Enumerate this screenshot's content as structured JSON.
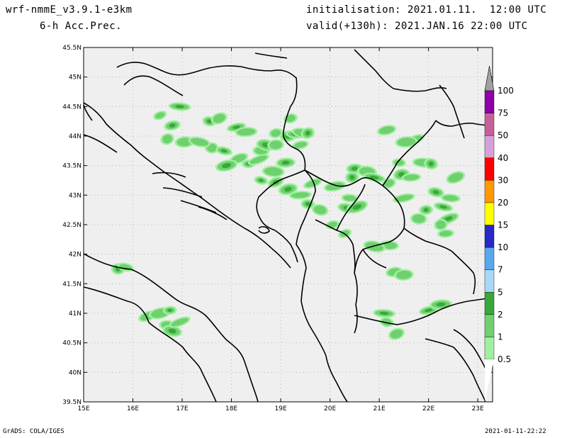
{
  "header": {
    "model": "wrf-nmmE_v3.9.1-e3km",
    "field": "6-h Acc.Prec.",
    "init": "initialisation: 2021.01.11.  12:00 UTC",
    "valid": "valid(+130h): 2021.JAN.16 22:00 UTC"
  },
  "footer": {
    "credit": "GrADS: COLA/IGES",
    "timestamp": "2021-01-11-22:22"
  },
  "map": {
    "lon_range": [
      15,
      23.3
    ],
    "lat_range": [
      39.5,
      45.5
    ],
    "background": "#efefef",
    "lon_ticks": [
      "15E",
      "16E",
      "17E",
      "18E",
      "19E",
      "20E",
      "21E",
      "22E",
      "23E"
    ],
    "lat_ticks": [
      "39.5N",
      "40N",
      "40.5N",
      "41N",
      "41.5N",
      "42N",
      "42.5N",
      "43N",
      "43.5N",
      "44N",
      "44.5N",
      "45N",
      "45.5N"
    ]
  },
  "legend": {
    "levels": [
      "0.5",
      "1",
      "2",
      "5",
      "7",
      "10",
      "15",
      "20",
      "30",
      "40",
      "50",
      "75",
      "100"
    ],
    "colors": [
      "#a0f0a0",
      "#70d070",
      "#38a838",
      "#a8d8f8",
      "#58a8f0",
      "#2828c8",
      "#ffff00",
      "#ff9800",
      "#ff0000",
      "#d8a0d8",
      "#c86098",
      "#9000a8",
      "#a0a0a0"
    ]
  },
  "precip_blobs": [
    {
      "lon": 16.55,
      "lat": 44.35,
      "c": 1
    },
    {
      "lon": 16.8,
      "lat": 44.18,
      "c": 2
    },
    {
      "lon": 17.05,
      "lat": 43.9,
      "c": 1
    },
    {
      "lon": 16.95,
      "lat": 44.5,
      "c": 2
    },
    {
      "lon": 17.55,
      "lat": 44.25,
      "c": 2
    },
    {
      "lon": 17.75,
      "lat": 44.3,
      "c": 1
    },
    {
      "lon": 18.1,
      "lat": 44.15,
      "c": 2
    },
    {
      "lon": 18.3,
      "lat": 44.07,
      "c": 1
    },
    {
      "lon": 17.6,
      "lat": 43.8,
      "c": 1
    },
    {
      "lon": 17.85,
      "lat": 43.75,
      "c": 2
    },
    {
      "lon": 18.15,
      "lat": 43.62,
      "c": 1
    },
    {
      "lon": 17.9,
      "lat": 43.5,
      "c": 2
    },
    {
      "lon": 18.35,
      "lat": 43.53,
      "c": 2
    },
    {
      "lon": 18.6,
      "lat": 43.75,
      "c": 1
    },
    {
      "lon": 18.7,
      "lat": 43.85,
      "c": 2
    },
    {
      "lon": 18.55,
      "lat": 43.6,
      "c": 1
    },
    {
      "lon": 18.9,
      "lat": 44.05,
      "c": 1
    },
    {
      "lon": 19.15,
      "lat": 44.0,
      "c": 2
    },
    {
      "lon": 19.3,
      "lat": 44.03,
      "c": 2
    },
    {
      "lon": 19.45,
      "lat": 44.05,
      "c": 1
    },
    {
      "lon": 19.55,
      "lat": 44.05,
      "c": 2
    },
    {
      "lon": 19.4,
      "lat": 43.85,
      "c": 1
    },
    {
      "lon": 19.1,
      "lat": 43.55,
      "c": 2
    },
    {
      "lon": 18.85,
      "lat": 43.4,
      "c": 1
    },
    {
      "lon": 18.6,
      "lat": 43.25,
      "c": 2
    },
    {
      "lon": 18.9,
      "lat": 43.22,
      "c": 2
    },
    {
      "lon": 19.15,
      "lat": 43.1,
      "c": 2
    },
    {
      "lon": 19.4,
      "lat": 43.0,
      "c": 1
    },
    {
      "lon": 19.55,
      "lat": 42.85,
      "c": 2
    },
    {
      "lon": 19.8,
      "lat": 42.75,
      "c": 1
    },
    {
      "lon": 19.65,
      "lat": 43.2,
      "c": 1
    },
    {
      "lon": 20.1,
      "lat": 43.15,
      "c": 1
    },
    {
      "lon": 20.45,
      "lat": 43.3,
      "c": 2
    },
    {
      "lon": 20.4,
      "lat": 42.95,
      "c": 1
    },
    {
      "lon": 20.35,
      "lat": 42.78,
      "c": 2
    },
    {
      "lon": 20.55,
      "lat": 42.8,
      "c": 2
    },
    {
      "lon": 20.05,
      "lat": 42.5,
      "c": 1
    },
    {
      "lon": 20.5,
      "lat": 43.45,
      "c": 2
    },
    {
      "lon": 20.75,
      "lat": 43.4,
      "c": 1
    },
    {
      "lon": 20.9,
      "lat": 43.3,
      "c": 2
    },
    {
      "lon": 21.2,
      "lat": 43.2,
      "c": 1
    },
    {
      "lon": 21.45,
      "lat": 43.35,
      "c": 2
    },
    {
      "lon": 21.65,
      "lat": 43.3,
      "c": 1
    },
    {
      "lon": 21.9,
      "lat": 43.55,
      "c": 1
    },
    {
      "lon": 22.05,
      "lat": 43.53,
      "c": 2
    },
    {
      "lon": 21.75,
      "lat": 43.95,
      "c": 1
    },
    {
      "lon": 21.15,
      "lat": 44.1,
      "c": 1
    },
    {
      "lon": 21.55,
      "lat": 43.9,
      "c": 1
    },
    {
      "lon": 21.4,
      "lat": 43.55,
      "c": 1
    },
    {
      "lon": 22.15,
      "lat": 43.05,
      "c": 2
    },
    {
      "lon": 22.55,
      "lat": 43.3,
      "c": 1
    },
    {
      "lon": 21.5,
      "lat": 42.95,
      "c": 1
    },
    {
      "lon": 21.95,
      "lat": 42.75,
      "c": 2
    },
    {
      "lon": 21.8,
      "lat": 42.6,
      "c": 1
    },
    {
      "lon": 22.3,
      "lat": 42.8,
      "c": 2
    },
    {
      "lon": 22.4,
      "lat": 42.6,
      "c": 2
    },
    {
      "lon": 22.25,
      "lat": 42.5,
      "c": 1
    },
    {
      "lon": 22.35,
      "lat": 42.35,
      "c": 1
    },
    {
      "lon": 21.2,
      "lat": 42.15,
      "c": 1
    },
    {
      "lon": 20.9,
      "lat": 42.13,
      "c": 1
    },
    {
      "lon": 20.3,
      "lat": 42.35,
      "c": 1
    },
    {
      "lon": 21.3,
      "lat": 41.7,
      "c": 1
    },
    {
      "lon": 21.5,
      "lat": 41.65,
      "c": 1
    },
    {
      "lon": 21.1,
      "lat": 41.0,
      "c": 2
    },
    {
      "lon": 21.15,
      "lat": 40.85,
      "c": 1
    },
    {
      "lon": 21.35,
      "lat": 40.65,
      "c": 1
    },
    {
      "lon": 22.0,
      "lat": 41.05,
      "c": 2
    },
    {
      "lon": 22.25,
      "lat": 41.15,
      "c": 2
    },
    {
      "lon": 15.7,
      "lat": 41.75,
      "c": 2
    },
    {
      "lon": 15.85,
      "lat": 41.78,
      "c": 1
    },
    {
      "lon": 16.3,
      "lat": 40.95,
      "c": 1
    },
    {
      "lon": 16.55,
      "lat": 41.0,
      "c": 1
    },
    {
      "lon": 16.75,
      "lat": 41.05,
      "c": 2
    },
    {
      "lon": 16.7,
      "lat": 40.8,
      "c": 1
    },
    {
      "lon": 16.8,
      "lat": 40.7,
      "c": 2
    },
    {
      "lon": 16.95,
      "lat": 40.85,
      "c": 1
    },
    {
      "lon": 19.2,
      "lat": 44.3,
      "c": 1
    },
    {
      "lon": 18.9,
      "lat": 43.85,
      "c": 1
    },
    {
      "lon": 22.45,
      "lat": 42.95,
      "c": 1
    },
    {
      "lon": 17.35,
      "lat": 43.9,
      "c": 1
    },
    {
      "lon": 16.7,
      "lat": 43.95,
      "c": 1
    }
  ]
}
